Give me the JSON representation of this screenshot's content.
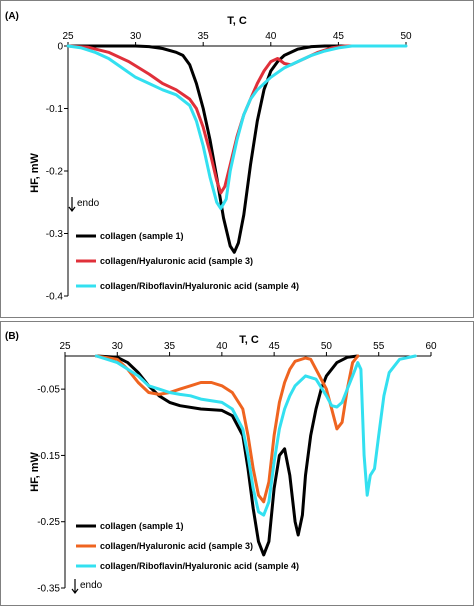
{
  "chart_data": [
    {
      "type": "line",
      "panel_label": "(A)",
      "xlabel": "T, C",
      "ylabel": "HF, mW",
      "xlim": [
        25,
        50
      ],
      "ylim": [
        -0.4,
        0
      ],
      "xticks": [
        25,
        30,
        35,
        40,
        45,
        50
      ],
      "yticks": [
        0,
        -0.1,
        -0.2,
        -0.3,
        -0.4
      ],
      "x_axis_position": "top",
      "grid": false,
      "legend_position": "bottom-left",
      "annotation": "endo",
      "series": [
        {
          "name": "collagen (sample 1)",
          "color": "#000000",
          "points": [
            [
              25,
              0
            ],
            [
              30,
              0
            ],
            [
              31,
              -0.001
            ],
            [
              32,
              -0.004
            ],
            [
              33,
              -0.01
            ],
            [
              33.5,
              -0.015
            ],
            [
              34,
              -0.03
            ],
            [
              34.5,
              -0.06
            ],
            [
              35,
              -0.1
            ],
            [
              35.5,
              -0.15
            ],
            [
              36,
              -0.21
            ],
            [
              36.5,
              -0.275
            ],
            [
              37,
              -0.32
            ],
            [
              37.3,
              -0.33
            ],
            [
              37.6,
              -0.315
            ],
            [
              38,
              -0.27
            ],
            [
              38.5,
              -0.19
            ],
            [
              39,
              -0.12
            ],
            [
              39.5,
              -0.07
            ],
            [
              40,
              -0.04
            ],
            [
              40.5,
              -0.025
            ],
            [
              41,
              -0.015
            ],
            [
              42,
              -0.005
            ],
            [
              43,
              -0.001
            ],
            [
              44,
              0
            ],
            [
              46,
              0
            ]
          ]
        },
        {
          "name": "collagen/Hyaluronic acid (sample 3)",
          "color": "#e0303a",
          "points": [
            [
              25,
              0
            ],
            [
              26.5,
              -0.002
            ],
            [
              28,
              -0.01
            ],
            [
              29.5,
              -0.025
            ],
            [
              31,
              -0.045
            ],
            [
              32,
              -0.06
            ],
            [
              33,
              -0.07
            ],
            [
              34,
              -0.085
            ],
            [
              34.5,
              -0.1
            ],
            [
              35,
              -0.13
            ],
            [
              35.5,
              -0.17
            ],
            [
              36,
              -0.215
            ],
            [
              36.3,
              -0.235
            ],
            [
              36.6,
              -0.225
            ],
            [
              37,
              -0.19
            ],
            [
              37.5,
              -0.145
            ],
            [
              38,
              -0.11
            ],
            [
              38.5,
              -0.085
            ],
            [
              39,
              -0.06
            ],
            [
              39.5,
              -0.04
            ],
            [
              40,
              -0.025
            ],
            [
              40.5,
              -0.02
            ],
            [
              41,
              -0.028
            ],
            [
              41.5,
              -0.03
            ],
            [
              42.5,
              -0.02
            ],
            [
              43.5,
              -0.01
            ],
            [
              44.5,
              -0.003
            ],
            [
              45.5,
              0
            ],
            [
              47,
              0
            ]
          ]
        },
        {
          "name": "collagen/Riboflavin/Hyaluronic acid (sample 4)",
          "color": "#33e0f0",
          "points": [
            [
              25,
              0
            ],
            [
              26,
              -0.003
            ],
            [
              27,
              -0.01
            ],
            [
              28,
              -0.02
            ],
            [
              29,
              -0.035
            ],
            [
              30,
              -0.05
            ],
            [
              31,
              -0.06
            ],
            [
              32,
              -0.07
            ],
            [
              33,
              -0.078
            ],
            [
              34,
              -0.095
            ],
            [
              34.5,
              -0.12
            ],
            [
              35,
              -0.16
            ],
            [
              35.5,
              -0.21
            ],
            [
              36,
              -0.25
            ],
            [
              36.3,
              -0.26
            ],
            [
              36.7,
              -0.245
            ],
            [
              37,
              -0.2
            ],
            [
              37.5,
              -0.15
            ],
            [
              38,
              -0.11
            ],
            [
              38.5,
              -0.085
            ],
            [
              39,
              -0.07
            ],
            [
              40,
              -0.05
            ],
            [
              41,
              -0.035
            ],
            [
              42,
              -0.025
            ],
            [
              43,
              -0.015
            ],
            [
              44,
              -0.008
            ],
            [
              45,
              -0.003
            ],
            [
              46,
              0
            ],
            [
              50,
              0
            ]
          ]
        }
      ]
    },
    {
      "type": "line",
      "panel_label": "(B)",
      "xlabel": "T, C",
      "ylabel": "HF, mW",
      "xlim": [
        25,
        60
      ],
      "ylim": [
        -0.35,
        0
      ],
      "xticks": [
        25,
        30,
        35,
        40,
        45,
        50,
        55,
        60
      ],
      "yticks": [
        -0.05,
        -0.15,
        -0.25,
        -0.35
      ],
      "x_axis_position": "top",
      "grid": false,
      "legend_position": "bottom-left",
      "annotation": "endo",
      "series": [
        {
          "name": "collagen (sample 1)",
          "color": "#000000",
          "points": [
            [
              28,
              0
            ],
            [
              30,
              -0.002
            ],
            [
              31,
              -0.01
            ],
            [
              32,
              -0.025
            ],
            [
              33,
              -0.045
            ],
            [
              34,
              -0.06
            ],
            [
              35,
              -0.07
            ],
            [
              36,
              -0.075
            ],
            [
              38,
              -0.08
            ],
            [
              40,
              -0.082
            ],
            [
              41,
              -0.09
            ],
            [
              42,
              -0.12
            ],
            [
              42.5,
              -0.17
            ],
            [
              43,
              -0.23
            ],
            [
              43.5,
              -0.28
            ],
            [
              44,
              -0.3
            ],
            [
              44.5,
              -0.28
            ],
            [
              45,
              -0.2
            ],
            [
              45.5,
              -0.15
            ],
            [
              46,
              -0.14
            ],
            [
              46.5,
              -0.18
            ],
            [
              47,
              -0.25
            ],
            [
              47.3,
              -0.27
            ],
            [
              47.7,
              -0.24
            ],
            [
              48,
              -0.18
            ],
            [
              48.5,
              -0.12
            ],
            [
              49,
              -0.08
            ],
            [
              49.5,
              -0.05
            ],
            [
              50,
              -0.03
            ],
            [
              51,
              -0.01
            ],
            [
              52,
              -0.002
            ],
            [
              53,
              0
            ]
          ]
        },
        {
          "name": "collagen/Hyaluronic acid (sample 3)",
          "color": "#ef6420",
          "points": [
            [
              28,
              0
            ],
            [
              30,
              -0.005
            ],
            [
              31,
              -0.02
            ],
            [
              32,
              -0.04
            ],
            [
              33,
              -0.055
            ],
            [
              34,
              -0.058
            ],
            [
              35,
              -0.055
            ],
            [
              36,
              -0.05
            ],
            [
              37,
              -0.045
            ],
            [
              38,
              -0.04
            ],
            [
              39,
              -0.04
            ],
            [
              40,
              -0.045
            ],
            [
              41,
              -0.055
            ],
            [
              42,
              -0.08
            ],
            [
              42.5,
              -0.12
            ],
            [
              43,
              -0.17
            ],
            [
              43.5,
              -0.21
            ],
            [
              44,
              -0.22
            ],
            [
              44.5,
              -0.19
            ],
            [
              45,
              -0.12
            ],
            [
              45.5,
              -0.07
            ],
            [
              46,
              -0.04
            ],
            [
              46.5,
              -0.02
            ],
            [
              47,
              -0.008
            ],
            [
              48,
              -0.003
            ],
            [
              48.5,
              -0.005
            ],
            [
              49,
              -0.02
            ],
            [
              50,
              -0.05
            ],
            [
              50.5,
              -0.08
            ],
            [
              51,
              -0.11
            ],
            [
              51.5,
              -0.1
            ],
            [
              52,
              -0.05
            ],
            [
              52.5,
              -0.01
            ],
            [
              53,
              0
            ]
          ]
        },
        {
          "name": "collagen/Riboflavin/Hyaluronic acid (sample 4)",
          "color": "#33e0f0",
          "points": [
            [
              28,
              0
            ],
            [
              30,
              -0.01
            ],
            [
              32,
              -0.03
            ],
            [
              33,
              -0.045
            ],
            [
              34,
              -0.05
            ],
            [
              35,
              -0.055
            ],
            [
              36,
              -0.058
            ],
            [
              37,
              -0.06
            ],
            [
              38,
              -0.065
            ],
            [
              40,
              -0.07
            ],
            [
              41,
              -0.08
            ],
            [
              42,
              -0.11
            ],
            [
              42.5,
              -0.15
            ],
            [
              43,
              -0.2
            ],
            [
              43.5,
              -0.235
            ],
            [
              44,
              -0.24
            ],
            [
              44.5,
              -0.22
            ],
            [
              45,
              -0.16
            ],
            [
              45.5,
              -0.11
            ],
            [
              46,
              -0.08
            ],
            [
              46.5,
              -0.06
            ],
            [
              47,
              -0.045
            ],
            [
              48,
              -0.03
            ],
            [
              49,
              -0.035
            ],
            [
              50,
              -0.06
            ],
            [
              50.5,
              -0.075
            ],
            [
              51,
              -0.077
            ],
            [
              51.5,
              -0.07
            ],
            [
              52,
              -0.05
            ],
            [
              52.5,
              -0.03
            ],
            [
              53,
              -0.01
            ],
            [
              53.3,
              -0.02
            ],
            [
              53.6,
              -0.15
            ],
            [
              53.9,
              -0.21
            ],
            [
              54.2,
              -0.18
            ],
            [
              54.6,
              -0.17
            ],
            [
              55,
              -0.12
            ],
            [
              55.5,
              -0.06
            ],
            [
              56,
              -0.025
            ],
            [
              57,
              -0.005
            ],
            [
              58.5,
              0
            ]
          ]
        }
      ]
    }
  ]
}
